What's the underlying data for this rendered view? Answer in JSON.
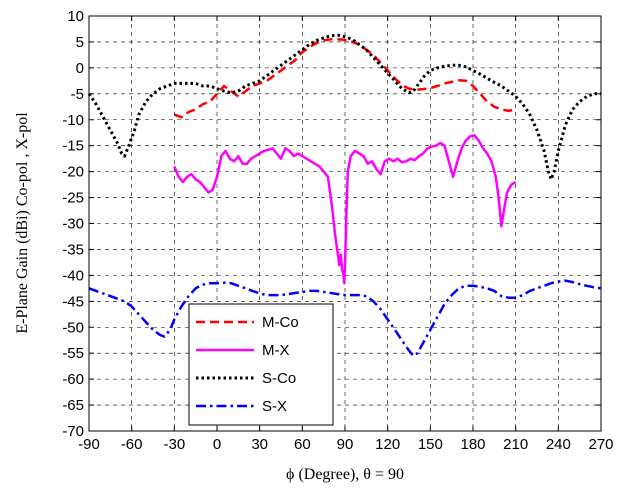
{
  "chart_data": {
    "type": "line",
    "xlabel": "ϕ (Degree), θ = 90",
    "ylabel": "E-Plane Gain (dBi) Co-pol , X-pol",
    "xlim": [
      -90,
      270
    ],
    "ylim": [
      -70,
      10
    ],
    "x_ticks": [
      -90,
      -60,
      -30,
      0,
      30,
      60,
      90,
      120,
      150,
      180,
      210,
      240,
      270
    ],
    "y_ticks": [
      -70,
      -65,
      -60,
      -55,
      -50,
      -45,
      -40,
      -35,
      -30,
      -25,
      -20,
      -15,
      -10,
      -5,
      0,
      5,
      10
    ],
    "x_tick_labels": [
      "-90",
      "-60",
      "-30",
      "0",
      "30",
      "60",
      "90",
      "120",
      "150",
      "180",
      "210",
      "240",
      "270"
    ],
    "y_tick_labels": [
      "-70",
      "-65",
      "-60",
      "-55",
      "-50",
      "-45",
      "-40",
      "-35",
      "-30",
      "-25",
      "-20",
      "-15",
      "-10",
      "-5",
      "0",
      "5",
      "10"
    ],
    "grid": true,
    "legend_position": "bottom-left",
    "series": [
      {
        "name": "M-Co",
        "color": "#ff0000",
        "dash": "dashed",
        "width": 2.5,
        "points": [
          [
            -30,
            -9
          ],
          [
            -25,
            -9.5
          ],
          [
            -20,
            -8.5
          ],
          [
            -15,
            -8
          ],
          [
            -10,
            -7
          ],
          [
            -5,
            -6.5
          ],
          [
            0,
            -5
          ],
          [
            5,
            -3.5
          ],
          [
            10,
            -4.5
          ],
          [
            15,
            -5.5
          ],
          [
            20,
            -4.5
          ],
          [
            25,
            -3.5
          ],
          [
            30,
            -3
          ],
          [
            35,
            -2.5
          ],
          [
            40,
            -1.5
          ],
          [
            45,
            -0.5
          ],
          [
            50,
            0.5
          ],
          [
            55,
            1.5
          ],
          [
            60,
            3
          ],
          [
            65,
            4
          ],
          [
            70,
            4.8
          ],
          [
            75,
            5.3
          ],
          [
            80,
            5.5
          ],
          [
            85,
            5.5
          ],
          [
            90,
            5.4
          ],
          [
            95,
            5
          ],
          [
            100,
            4.5
          ],
          [
            105,
            3.5
          ],
          [
            110,
            2.5
          ],
          [
            115,
            1
          ],
          [
            120,
            -0.5
          ],
          [
            125,
            -2
          ],
          [
            130,
            -3.3
          ],
          [
            135,
            -4
          ],
          [
            140,
            -4.2
          ],
          [
            145,
            -4.1
          ],
          [
            150,
            -3.9
          ],
          [
            155,
            -3.5
          ],
          [
            160,
            -3
          ],
          [
            165,
            -2.7
          ],
          [
            170,
            -2.4
          ],
          [
            175,
            -2.5
          ],
          [
            180,
            -3.5
          ],
          [
            185,
            -5
          ],
          [
            190,
            -6.5
          ],
          [
            195,
            -7.5
          ],
          [
            200,
            -8
          ],
          [
            205,
            -8.3
          ],
          [
            210,
            -8
          ]
        ]
      },
      {
        "name": "M-X",
        "color": "#ff00ff",
        "dash": "solid",
        "width": 2.5,
        "points": [
          [
            -30,
            -19
          ],
          [
            -27,
            -21
          ],
          [
            -24,
            -22
          ],
          [
            -21,
            -21
          ],
          [
            -18,
            -20.5
          ],
          [
            -15,
            -21.5
          ],
          [
            -12,
            -22
          ],
          [
            -9,
            -23
          ],
          [
            -6,
            -24
          ],
          [
            -3,
            -23.5
          ],
          [
            0,
            -21
          ],
          [
            3,
            -17
          ],
          [
            6,
            -16
          ],
          [
            9,
            -17.5
          ],
          [
            12,
            -18
          ],
          [
            15,
            -17
          ],
          [
            18,
            -18.5
          ],
          [
            21,
            -18.5
          ],
          [
            24,
            -17.5
          ],
          [
            27,
            -17
          ],
          [
            30,
            -16.5
          ],
          [
            33,
            -16
          ],
          [
            36,
            -15.8
          ],
          [
            39,
            -15.5
          ],
          [
            42,
            -16.5
          ],
          [
            45,
            -17.5
          ],
          [
            48,
            -15.5
          ],
          [
            51,
            -16
          ],
          [
            54,
            -17
          ],
          [
            57,
            -16.5
          ],
          [
            60,
            -17
          ],
          [
            63,
            -17.5
          ],
          [
            66,
            -18
          ],
          [
            69,
            -18.5
          ],
          [
            72,
            -19
          ],
          [
            75,
            -20
          ],
          [
            78,
            -21
          ],
          [
            81,
            -27
          ],
          [
            83,
            -32
          ],
          [
            85,
            -36
          ],
          [
            86,
            -38
          ],
          [
            87,
            -36
          ],
          [
            88,
            -39
          ],
          [
            89,
            -40
          ],
          [
            89.5,
            -41.5
          ],
          [
            90,
            -38
          ],
          [
            91,
            -28
          ],
          [
            92,
            -20
          ],
          [
            94,
            -17
          ],
          [
            97,
            -16
          ],
          [
            100,
            -16.5
          ],
          [
            103,
            -17
          ],
          [
            106,
            -18.5
          ],
          [
            109,
            -18
          ],
          [
            112,
            -19.5
          ],
          [
            115,
            -20.5
          ],
          [
            118,
            -18
          ],
          [
            121,
            -17.5
          ],
          [
            124,
            -18
          ],
          [
            127,
            -17.5
          ],
          [
            130,
            -18.2
          ],
          [
            133,
            -18
          ],
          [
            136,
            -17.5
          ],
          [
            139,
            -17.8
          ],
          [
            142,
            -17
          ],
          [
            145,
            -16.5
          ],
          [
            148,
            -15.5
          ],
          [
            151,
            -15.2
          ],
          [
            154,
            -15
          ],
          [
            157,
            -14.5
          ],
          [
            160,
            -15
          ],
          [
            163,
            -18
          ],
          [
            166,
            -21
          ],
          [
            169,
            -18
          ],
          [
            172,
            -15.5
          ],
          [
            175,
            -14
          ],
          [
            178,
            -13.2
          ],
          [
            181,
            -13
          ],
          [
            184,
            -14
          ],
          [
            187,
            -15.5
          ],
          [
            190,
            -16.5
          ],
          [
            193,
            -18
          ],
          [
            196,
            -21
          ],
          [
            198,
            -25
          ],
          [
            200,
            -30.5
          ],
          [
            202,
            -27
          ],
          [
            204,
            -24
          ],
          [
            207,
            -22.5
          ],
          [
            210,
            -22
          ]
        ]
      },
      {
        "name": "S-Co",
        "color": "#000000",
        "dash": "dotted",
        "width": 3,
        "points": [
          [
            -90,
            -5
          ],
          [
            -85,
            -7
          ],
          [
            -80,
            -9.5
          ],
          [
            -75,
            -12
          ],
          [
            -70,
            -14.5
          ],
          [
            -67,
            -16.5
          ],
          [
            -65,
            -17
          ],
          [
            -62,
            -15
          ],
          [
            -58,
            -12
          ],
          [
            -55,
            -9
          ],
          [
            -50,
            -6.5
          ],
          [
            -45,
            -5
          ],
          [
            -40,
            -4
          ],
          [
            -35,
            -3.5
          ],
          [
            -30,
            -3
          ],
          [
            -25,
            -3
          ],
          [
            -20,
            -3
          ],
          [
            -15,
            -3
          ],
          [
            -10,
            -3.5
          ],
          [
            -5,
            -3.5
          ],
          [
            0,
            -4
          ],
          [
            5,
            -4.5
          ],
          [
            10,
            -4.8
          ],
          [
            15,
            -4.5
          ],
          [
            20,
            -3.5
          ],
          [
            25,
            -3
          ],
          [
            30,
            -2.5
          ],
          [
            35,
            -1.5
          ],
          [
            40,
            -0.5
          ],
          [
            45,
            0.5
          ],
          [
            50,
            1.5
          ],
          [
            55,
            2.5
          ],
          [
            60,
            3.5
          ],
          [
            65,
            4.5
          ],
          [
            70,
            5.3
          ],
          [
            75,
            5.8
          ],
          [
            80,
            6.2
          ],
          [
            85,
            6.3
          ],
          [
            90,
            6
          ],
          [
            95,
            5.5
          ],
          [
            100,
            4.5
          ],
          [
            105,
            3.5
          ],
          [
            110,
            2
          ],
          [
            115,
            0.5
          ],
          [
            120,
            -1
          ],
          [
            125,
            -2.5
          ],
          [
            130,
            -4
          ],
          [
            135,
            -4.8
          ],
          [
            138,
            -4.5
          ],
          [
            142,
            -3
          ],
          [
            146,
            -1.5
          ],
          [
            150,
            -0.5
          ],
          [
            155,
            0
          ],
          [
            160,
            0.3
          ],
          [
            165,
            0.5
          ],
          [
            170,
            0.5
          ],
          [
            175,
            0.2
          ],
          [
            180,
            -0.5
          ],
          [
            185,
            -1.2
          ],
          [
            190,
            -2
          ],
          [
            195,
            -2.8
          ],
          [
            200,
            -3.5
          ],
          [
            205,
            -4.5
          ],
          [
            210,
            -5.5
          ],
          [
            215,
            -7
          ],
          [
            220,
            -9
          ],
          [
            225,
            -12
          ],
          [
            230,
            -16
          ],
          [
            233,
            -20
          ],
          [
            235,
            -21.5
          ],
          [
            237,
            -20
          ],
          [
            240,
            -16
          ],
          [
            245,
            -11
          ],
          [
            250,
            -8
          ],
          [
            255,
            -6.5
          ],
          [
            260,
            -5.5
          ],
          [
            265,
            -5
          ],
          [
            270,
            -5
          ]
        ]
      },
      {
        "name": "S-X",
        "color": "#0000ff",
        "dash": "dashdot",
        "width": 2.5,
        "points": [
          [
            -90,
            -42.5
          ],
          [
            -85,
            -43
          ],
          [
            -80,
            -43.5
          ],
          [
            -75,
            -44
          ],
          [
            -70,
            -44.5
          ],
          [
            -65,
            -45
          ],
          [
            -60,
            -46
          ],
          [
            -55,
            -47.5
          ],
          [
            -50,
            -49
          ],
          [
            -45,
            -50.5
          ],
          [
            -40,
            -51.5
          ],
          [
            -37,
            -51.8
          ],
          [
            -33,
            -50.5
          ],
          [
            -30,
            -48.5
          ],
          [
            -25,
            -46
          ],
          [
            -20,
            -44
          ],
          [
            -15,
            -42.5
          ],
          [
            -10,
            -41.8
          ],
          [
            -5,
            -41.5
          ],
          [
            0,
            -41.5
          ],
          [
            5,
            -41.4
          ],
          [
            10,
            -41.5
          ],
          [
            15,
            -42
          ],
          [
            20,
            -42.5
          ],
          [
            25,
            -43
          ],
          [
            30,
            -43.5
          ],
          [
            35,
            -43.8
          ],
          [
            40,
            -43.8
          ],
          [
            45,
            -43.8
          ],
          [
            50,
            -43.6
          ],
          [
            55,
            -43.4
          ],
          [
            60,
            -43.2
          ],
          [
            65,
            -43
          ],
          [
            70,
            -43
          ],
          [
            75,
            -43.2
          ],
          [
            80,
            -43.4
          ],
          [
            85,
            -43.6
          ],
          [
            90,
            -43.8
          ],
          [
            95,
            -43.8
          ],
          [
            100,
            -43.8
          ],
          [
            105,
            -44
          ],
          [
            110,
            -45
          ],
          [
            115,
            -46.5
          ],
          [
            120,
            -48.5
          ],
          [
            125,
            -50.5
          ],
          [
            130,
            -52.5
          ],
          [
            135,
            -54.5
          ],
          [
            138,
            -55.5
          ],
          [
            141,
            -55
          ],
          [
            145,
            -53
          ],
          [
            150,
            -50.5
          ],
          [
            155,
            -48
          ],
          [
            160,
            -45.5
          ],
          [
            165,
            -43.8
          ],
          [
            170,
            -42.5
          ],
          [
            175,
            -42
          ],
          [
            180,
            -42
          ],
          [
            185,
            -42.2
          ],
          [
            190,
            -42.5
          ],
          [
            195,
            -43
          ],
          [
            200,
            -44
          ],
          [
            205,
            -44.3
          ],
          [
            210,
            -44.3
          ],
          [
            215,
            -43.8
          ],
          [
            220,
            -43
          ],
          [
            225,
            -42.5
          ],
          [
            230,
            -42
          ],
          [
            235,
            -41.5
          ],
          [
            240,
            -41.2
          ],
          [
            245,
            -41
          ],
          [
            250,
            -41.3
          ],
          [
            255,
            -41.7
          ],
          [
            260,
            -42
          ],
          [
            265,
            -42.3
          ],
          [
            270,
            -42.5
          ]
        ]
      }
    ]
  }
}
